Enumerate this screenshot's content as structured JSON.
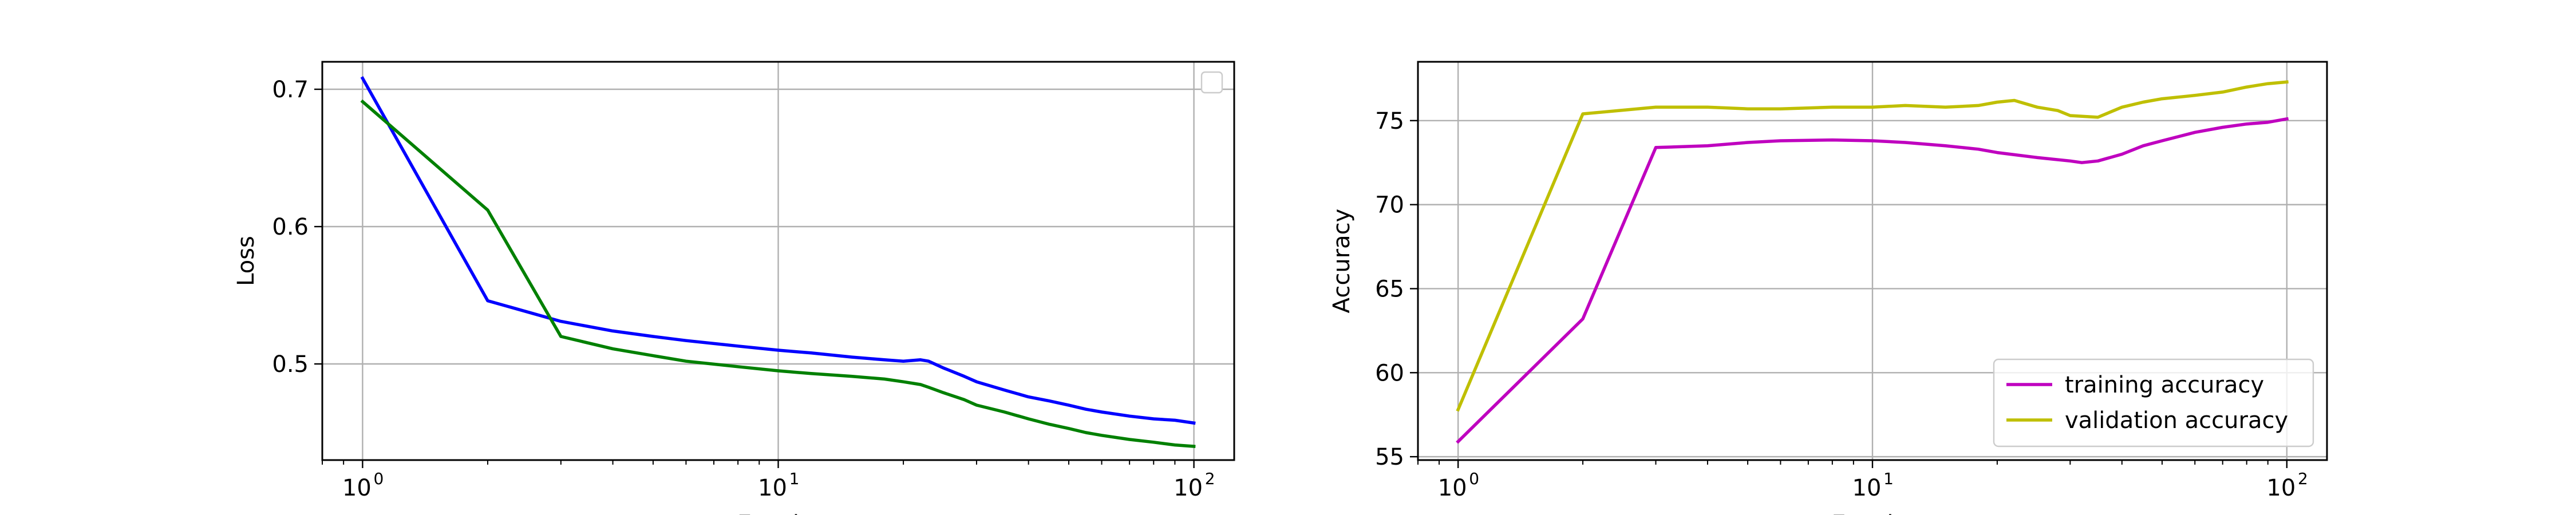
{
  "chart_data": [
    {
      "type": "line",
      "xscale": "log",
      "xlim": [
        0.8,
        125
      ],
      "ylim": [
        0.43,
        0.72
      ],
      "xlabel": "Epochs",
      "ylabel": "Loss",
      "grid": true,
      "legend": {
        "placement": "upper right",
        "entries": []
      },
      "xticks": [
        {
          "value": 1,
          "base": "10",
          "exp": "0"
        },
        {
          "value": 10,
          "base": "10",
          "exp": "1"
        },
        {
          "value": 100,
          "base": "10",
          "exp": "2"
        }
      ],
      "yticks": [
        {
          "value": 0.5,
          "label": "0.5"
        },
        {
          "value": 0.6,
          "label": "0.6"
        },
        {
          "value": 0.7,
          "label": "0.7"
        }
      ],
      "series": [
        {
          "color": "#0000ff",
          "x": [
            1,
            2,
            3,
            4,
            5,
            6,
            8,
            10,
            12,
            15,
            18,
            20,
            22,
            23,
            25,
            28,
            30,
            35,
            40,
            45,
            50,
            55,
            60,
            70,
            80,
            90,
            100
          ],
          "y": [
            0.708,
            0.546,
            0.531,
            0.524,
            0.52,
            0.517,
            0.513,
            0.51,
            0.508,
            0.505,
            0.503,
            0.502,
            0.503,
            0.502,
            0.497,
            0.491,
            0.487,
            0.481,
            0.476,
            0.473,
            0.47,
            0.467,
            0.465,
            0.462,
            0.46,
            0.459,
            0.457
          ]
        },
        {
          "color": "#008000",
          "x": [
            1,
            2,
            3,
            4,
            5,
            6,
            8,
            10,
            12,
            15,
            18,
            20,
            22,
            23,
            25,
            28,
            30,
            35,
            40,
            45,
            50,
            55,
            60,
            70,
            80,
            90,
            100
          ],
          "y": [
            0.691,
            0.612,
            0.52,
            0.511,
            0.506,
            0.502,
            0.498,
            0.495,
            0.493,
            0.491,
            0.489,
            0.487,
            0.485,
            0.483,
            0.479,
            0.474,
            0.47,
            0.465,
            0.46,
            0.456,
            0.453,
            0.45,
            0.448,
            0.445,
            0.443,
            0.441,
            0.44
          ]
        }
      ]
    },
    {
      "type": "line",
      "xscale": "log",
      "xlim": [
        0.8,
        125
      ],
      "ylim": [
        54.8,
        78.5
      ],
      "xlabel": "Epochs",
      "ylabel": "Accuracy",
      "grid": true,
      "legend": {
        "placement": "lower right",
        "entries": [
          "training accuracy",
          "validation accuracy"
        ]
      },
      "xticks": [
        {
          "value": 1,
          "base": "10",
          "exp": "0"
        },
        {
          "value": 10,
          "base": "10",
          "exp": "1"
        },
        {
          "value": 100,
          "base": "10",
          "exp": "2"
        }
      ],
      "yticks": [
        {
          "value": 55,
          "label": "55"
        },
        {
          "value": 60,
          "label": "60"
        },
        {
          "value": 65,
          "label": "65"
        },
        {
          "value": 70,
          "label": "70"
        },
        {
          "value": 75,
          "label": "75"
        }
      ],
      "series": [
        {
          "name": "training accuracy",
          "color": "#bf00bf",
          "x": [
            1,
            2,
            3,
            4,
            5,
            6,
            8,
            10,
            12,
            15,
            18,
            20,
            25,
            30,
            32,
            35,
            40,
            45,
            50,
            60,
            70,
            80,
            90,
            100
          ],
          "y": [
            55.9,
            63.2,
            73.4,
            73.5,
            73.7,
            73.8,
            73.85,
            73.8,
            73.7,
            73.5,
            73.3,
            73.1,
            72.8,
            72.6,
            72.5,
            72.6,
            73.0,
            73.5,
            73.8,
            74.3,
            74.6,
            74.8,
            74.9,
            75.1
          ]
        },
        {
          "name": "validation accuracy",
          "color": "#bfbf00",
          "x": [
            1,
            2,
            3,
            4,
            5,
            6,
            8,
            10,
            12,
            15,
            18,
            20,
            22,
            25,
            28,
            30,
            35,
            40,
            45,
            50,
            60,
            70,
            80,
            90,
            100
          ],
          "y": [
            57.8,
            75.4,
            75.8,
            75.8,
            75.7,
            75.7,
            75.8,
            75.8,
            75.9,
            75.8,
            75.9,
            76.1,
            76.2,
            75.8,
            75.6,
            75.3,
            75.2,
            75.8,
            76.1,
            76.3,
            76.5,
            76.7,
            77.0,
            77.2,
            77.3
          ]
        }
      ]
    }
  ]
}
